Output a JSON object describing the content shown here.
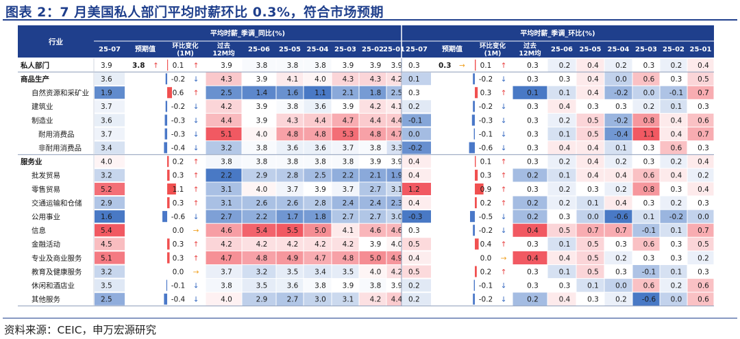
{
  "title": "图表 2：7 月美国私人部门平均时薪环比 0.3%，符合市场预期",
  "source": "资料来源：CEIC，申万宏源研究",
  "colors": {
    "header_bg": "#1f3f8c",
    "header_text": "#ffffff",
    "title": "#1f3f8c",
    "high": "#f0505a",
    "low": "#3f72c2",
    "up_arrow": "#e84040",
    "down_arrow": "#3468c0",
    "flat_arrow": "#f0a020",
    "bar_pos": "#f05050",
    "bar_neg": "#4a78c8"
  },
  "chart_data": {
    "type": "table",
    "row_header_label": "行业",
    "groups": [
      {
        "title": "平均时薪_季调_同比(%)",
        "columns": [
          "25-07",
          "预期值",
          "环比变化\n(1M)",
          "过去\n12M均",
          "25-06",
          "25-05",
          "25-04",
          "25-03",
          "25-02",
          "25-01"
        ]
      },
      {
        "title": "平均时薪_季调_环比(%)",
        "columns": [
          "25-07",
          "预期值",
          "环比变化\n(1M)",
          "过去\n12M均",
          "25-06",
          "25-05",
          "25-04",
          "25-03",
          "25-02",
          "25-01"
        ]
      }
    ],
    "rows": [
      {
        "name": "私人部门",
        "level": 0,
        "bold": true,
        "yoy": [
          3.9,
          3.8,
          0.1,
          3.9,
          3.8,
          3.8,
          3.8,
          3.9,
          3.9,
          3.9
        ],
        "yoy_arrow": "up",
        "mom": [
          0.3,
          0.3,
          0.1,
          0.3,
          0.2,
          0.4,
          0.2,
          0.3,
          0.2,
          0.4
        ],
        "mom_arrow": "up",
        "mom_flat_expected": true
      },
      {
        "name": "商品生产",
        "level": 0,
        "bold": true,
        "yoy": [
          3.6,
          null,
          -0.2,
          4.3,
          3.9,
          4.1,
          4.0,
          4.3,
          4.3,
          4.2
        ],
        "yoy_arrow": "down",
        "mom": [
          0.1,
          null,
          -0.2,
          0.3,
          0.3,
          0.4,
          0.0,
          0.6,
          0.3,
          0.5
        ],
        "mom_arrow": "down"
      },
      {
        "name": "自然资源和采矿业",
        "level": 1,
        "bold": false,
        "yoy": [
          1.9,
          null,
          0.6,
          2.5,
          1.4,
          1.6,
          1.1,
          2.1,
          1.8,
          2.5
        ],
        "yoy_arrow": "up",
        "mom": [
          0.3,
          null,
          0.3,
          0.1,
          0.1,
          0.4,
          -0.2,
          0.0,
          -0.1,
          0.7
        ],
        "mom_arrow": "up"
      },
      {
        "name": "建筑业",
        "level": 1,
        "bold": false,
        "yoy": [
          3.7,
          null,
          -0.2,
          4.2,
          3.9,
          3.8,
          3.6,
          3.9,
          4.2,
          4.1
        ],
        "yoy_arrow": "down",
        "mom": [
          0.2,
          null,
          -0.2,
          0.3,
          0.4,
          0.3,
          0.3,
          0.2,
          0.1,
          0.3
        ],
        "mom_arrow": "down"
      },
      {
        "name": "制造业",
        "level": 1,
        "bold": false,
        "yoy": [
          3.6,
          null,
          -0.3,
          4.4,
          3.9,
          4.3,
          4.4,
          4.7,
          4.4,
          4.4
        ],
        "yoy_arrow": "down",
        "mom": [
          -0.1,
          null,
          -0.3,
          0.3,
          0.2,
          0.5,
          -0.2,
          0.8,
          0.4,
          0.6
        ],
        "mom_arrow": "down"
      },
      {
        "name": "耐用消费品",
        "level": 2,
        "bold": false,
        "yoy": [
          3.7,
          null,
          -0.3,
          5.1,
          4.0,
          4.8,
          4.8,
          5.3,
          4.8,
          4.7
        ],
        "yoy_arrow": "down",
        "mom": [
          0.0,
          null,
          -0.1,
          0.3,
          0.1,
          0.5,
          -0.4,
          1.1,
          0.4,
          0.7
        ],
        "mom_arrow": "down"
      },
      {
        "name": "非耐用消费品",
        "level": 2,
        "bold": false,
        "yoy": [
          3.4,
          null,
          -0.4,
          3.2,
          3.8,
          3.6,
          3.6,
          3.7,
          3.8,
          3.3
        ],
        "yoy_arrow": "down",
        "mom": [
          -0.2,
          null,
          -0.6,
          0.3,
          0.4,
          0.4,
          0.1,
          0.3,
          0.6,
          0.3
        ],
        "mom_arrow": "down"
      },
      {
        "name": "服务业",
        "level": 0,
        "bold": true,
        "yoy": [
          4.0,
          null,
          0.2,
          3.8,
          3.8,
          3.8,
          3.8,
          3.8,
          3.9,
          3.9
        ],
        "yoy_arrow": "up",
        "mom": [
          0.4,
          null,
          0.1,
          0.3,
          0.2,
          0.4,
          0.2,
          0.3,
          0.2,
          0.4
        ],
        "mom_arrow": "up"
      },
      {
        "name": "批发贸易",
        "level": 1,
        "bold": false,
        "yoy": [
          3.2,
          null,
          0.3,
          2.2,
          2.9,
          2.8,
          2.5,
          2.2,
          2.1,
          1.9
        ],
        "yoy_arrow": "up",
        "mom": [
          0.4,
          null,
          0.3,
          0.2,
          0.1,
          0.4,
          0.4,
          0.6,
          0.4,
          0.2
        ],
        "mom_arrow": "up"
      },
      {
        "name": "零售贸易",
        "level": 1,
        "bold": false,
        "yoy": [
          5.2,
          null,
          1.1,
          3.1,
          4.0,
          3.7,
          3.9,
          3.7,
          2.7,
          3.1
        ],
        "yoy_arrow": "up",
        "mom": [
          1.2,
          null,
          0.9,
          0.3,
          0.2,
          0.3,
          0.2,
          0.8,
          0.3,
          0.4
        ],
        "mom_arrow": "up"
      },
      {
        "name": "交通运输和仓储",
        "level": 1,
        "bold": false,
        "yoy": [
          2.9,
          null,
          0.3,
          3.1,
          2.6,
          2.6,
          2.8,
          2.4,
          2.4,
          2.3
        ],
        "yoy_arrow": "up",
        "mom": [
          0.4,
          null,
          0.2,
          0.2,
          0.2,
          0.1,
          0.4,
          0.3,
          0.2,
          0.3
        ],
        "mom_arrow": "up"
      },
      {
        "name": "公用事业",
        "level": 1,
        "bold": false,
        "yoy": [
          1.6,
          null,
          -0.6,
          2.7,
          2.2,
          1.7,
          1.8,
          2.7,
          2.7,
          3.0
        ],
        "yoy_arrow": "down",
        "mom": [
          -0.3,
          null,
          -0.5,
          0.2,
          0.3,
          0.0,
          -0.6,
          0.1,
          -0.2,
          0.0
        ],
        "mom_arrow": "down"
      },
      {
        "name": "信息",
        "level": 1,
        "bold": false,
        "yoy": [
          5.4,
          null,
          0.0,
          4.6,
          5.4,
          5.5,
          5.0,
          4.1,
          4.6,
          4.6
        ],
        "yoy_arrow": "flat",
        "mom": [
          0.3,
          null,
          -0.2,
          0.4,
          0.5,
          0.7,
          0.7,
          -0.1,
          0.1,
          0.7
        ],
        "mom_arrow": "down"
      },
      {
        "name": "金融活动",
        "level": 1,
        "bold": false,
        "yoy": [
          4.5,
          null,
          0.3,
          4.2,
          4.2,
          4.2,
          4.2,
          4.2,
          3.9,
          4.0
        ],
        "yoy_arrow": "up",
        "mom": [
          0.5,
          null,
          0.4,
          0.3,
          0.1,
          0.5,
          0.3,
          0.6,
          0.3,
          0.5
        ],
        "mom_arrow": "up"
      },
      {
        "name": "专业及商业服务",
        "level": 1,
        "bold": false,
        "yoy": [
          5.1,
          null,
          0.3,
          4.7,
          4.8,
          4.9,
          4.7,
          4.8,
          5.0,
          4.9
        ],
        "yoy_arrow": "up",
        "mom": [
          0.4,
          null,
          0.0,
          0.4,
          0.4,
          0.5,
          0.2,
          0.3,
          0.3,
          0.2
        ],
        "mom_arrow": "flat"
      },
      {
        "name": "教育及健康服务",
        "level": 1,
        "bold": false,
        "yoy": [
          3.2,
          null,
          0.0,
          3.7,
          3.2,
          3.5,
          3.4,
          3.5,
          4.0,
          4.2
        ],
        "yoy_arrow": "flat",
        "mom": [
          0.5,
          null,
          0.2,
          0.3,
          0.1,
          0.5,
          0.3,
          -0.1,
          0.1,
          0.3
        ],
        "mom_arrow": "up"
      },
      {
        "name": "休闲和酒店业",
        "level": 1,
        "bold": false,
        "yoy": [
          3.5,
          null,
          -0.1,
          3.8,
          3.5,
          3.6,
          3.8,
          3.9,
          3.8,
          3.9
        ],
        "yoy_arrow": "down",
        "mom": [
          0.2,
          null,
          -0.1,
          0.3,
          0.3,
          0.1,
          0.0,
          0.6,
          0.2,
          0.6
        ],
        "mom_arrow": "down"
      },
      {
        "name": "其他服务",
        "level": 1,
        "bold": false,
        "yoy": [
          2.5,
          null,
          -0.4,
          4.0,
          2.9,
          2.7,
          3.0,
          3.1,
          4.2,
          4.4
        ],
        "yoy_arrow": "down",
        "mom": [
          0.2,
          null,
          -0.2,
          0.2,
          0.4,
          0.3,
          0.2,
          -0.6,
          0.0,
          0.6
        ],
        "mom_arrow": "down"
      }
    ]
  }
}
